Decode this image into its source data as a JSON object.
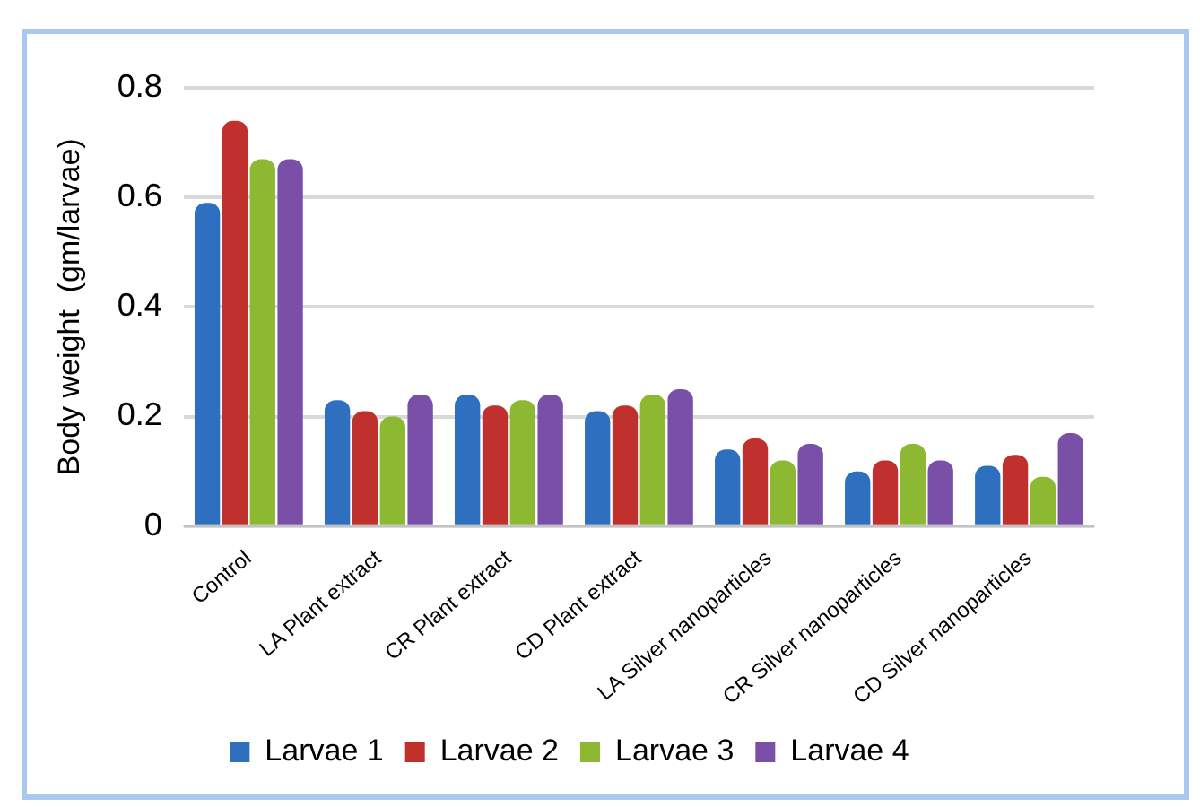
{
  "chart_data": {
    "type": "bar",
    "ylabel": "Body weight  (gm/larvae)",
    "categories": [
      "Control",
      "LA Plant extract",
      "CR Plant extract",
      "CD Plant extract",
      "LA Silver nanoparticles",
      "CR Silver nanoparticles",
      "CD Silver nanoparticles"
    ],
    "series": [
      {
        "name": "Larvae 1",
        "color": "#2e6fc0",
        "values": [
          0.59,
          0.23,
          0.24,
          0.21,
          0.14,
          0.1,
          0.11
        ]
      },
      {
        "name": "Larvae 2",
        "color": "#c0302c",
        "values": [
          0.74,
          0.21,
          0.22,
          0.22,
          0.16,
          0.12,
          0.13
        ]
      },
      {
        "name": "Larvae 3",
        "color": "#8db832",
        "values": [
          0.67,
          0.2,
          0.23,
          0.24,
          0.12,
          0.15,
          0.09
        ]
      },
      {
        "name": "Larvae 4",
        "color": "#7a4fa8",
        "values": [
          0.67,
          0.24,
          0.24,
          0.25,
          0.15,
          0.12,
          0.17
        ]
      }
    ],
    "ylim": [
      0,
      0.8
    ],
    "yticks": [
      0,
      0.2,
      0.4,
      0.6,
      0.8
    ],
    "grid": "y",
    "legend": "bottom"
  }
}
